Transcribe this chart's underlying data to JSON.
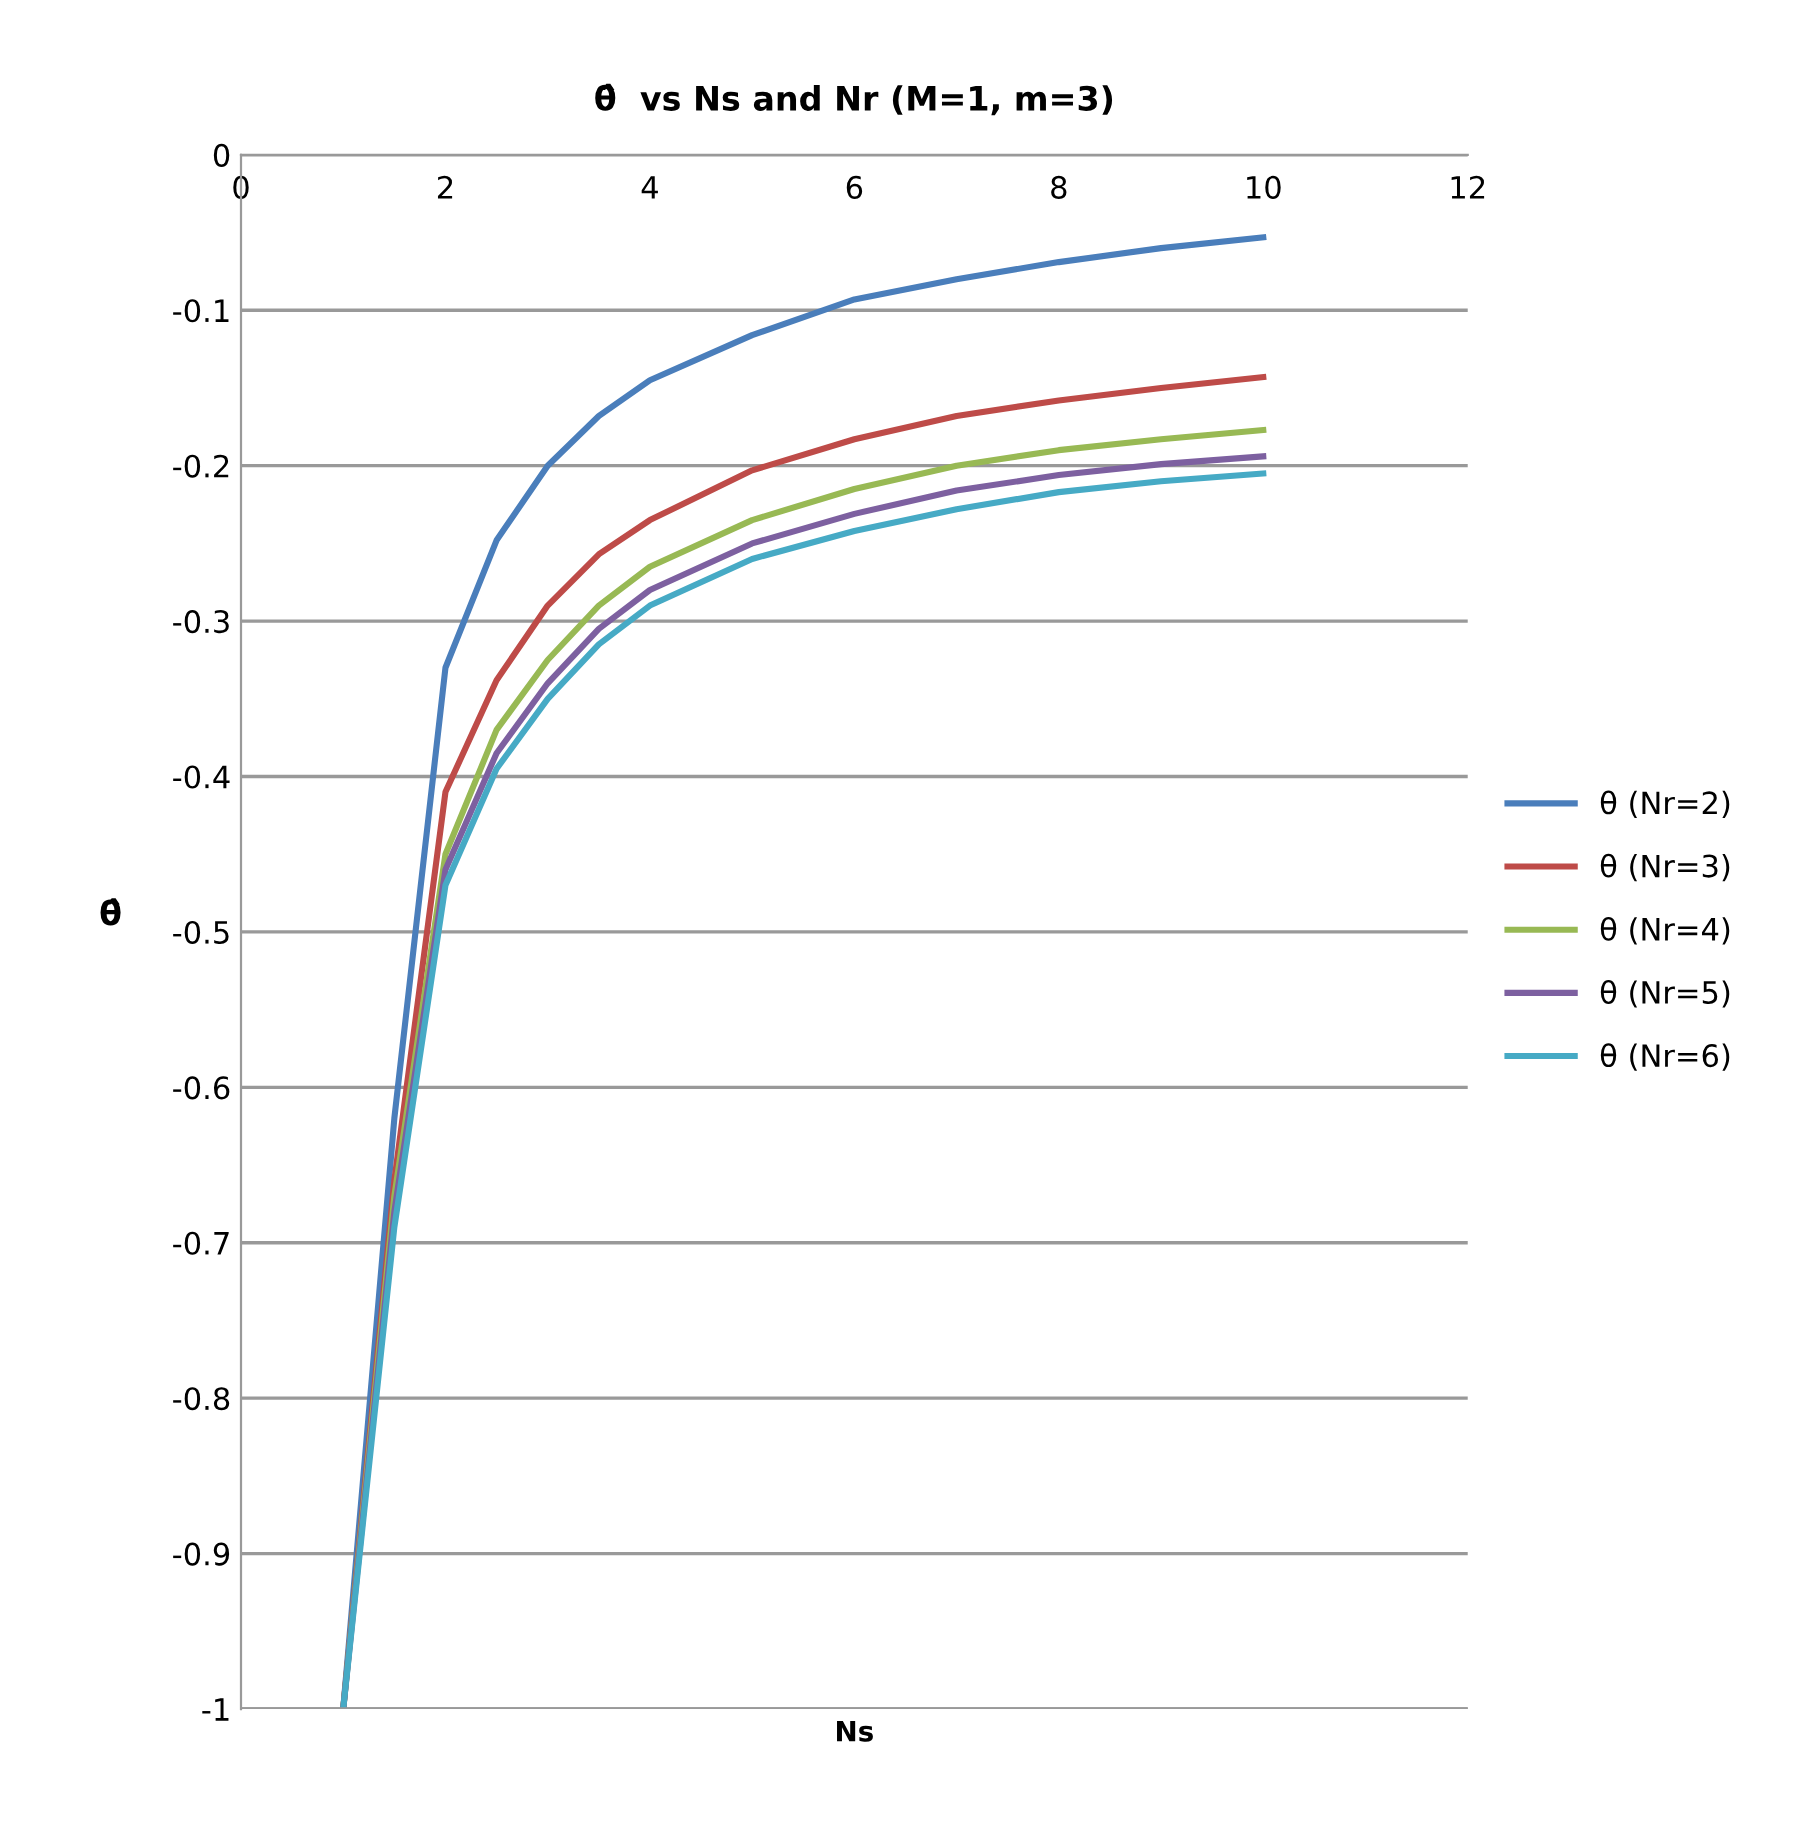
{
  "chart_data": {
    "type": "line",
    "title": "θ̂  vs Ns and Nr (M=1, m=3)",
    "xlabel": "Ns",
    "ylabel": "θ̂",
    "x": [
      1,
      1.5,
      2,
      2.5,
      3,
      3.5,
      4,
      5,
      6,
      7,
      8,
      9,
      10
    ],
    "series": [
      {
        "name": "θ (Nr=2)",
        "color": "#4a7ebb",
        "values": [
          -1,
          -0.62,
          -0.33,
          -0.248,
          -0.2,
          -0.168,
          -0.145,
          -0.116,
          -0.093,
          -0.08,
          -0.069,
          -0.06,
          -0.053
        ]
      },
      {
        "name": "θ (Nr=3)",
        "color": "#be4b48",
        "values": [
          -1,
          -0.66,
          -0.41,
          -0.338,
          -0.29,
          -0.257,
          -0.235,
          -0.203,
          -0.183,
          -0.168,
          -0.158,
          -0.15,
          -0.143
        ]
      },
      {
        "name": "θ (Nr=4)",
        "color": "#98b954",
        "values": [
          -1,
          -0.67,
          -0.45,
          -0.37,
          -0.325,
          -0.29,
          -0.265,
          -0.235,
          -0.215,
          -0.2,
          -0.19,
          -0.183,
          -0.177
        ]
      },
      {
        "name": "θ (Nr=5)",
        "color": "#7d60a0",
        "values": [
          -1,
          -0.68,
          -0.46,
          -0.385,
          -0.34,
          -0.305,
          -0.28,
          -0.25,
          -0.231,
          -0.216,
          -0.206,
          -0.199,
          -0.194
        ]
      },
      {
        "name": "θ (Nr=6)",
        "color": "#46aac5",
        "values": [
          -1,
          -0.69,
          -0.47,
          -0.395,
          -0.35,
          -0.315,
          -0.29,
          -0.26,
          -0.242,
          -0.228,
          -0.217,
          -0.21,
          -0.205
        ]
      }
    ],
    "xlim": [
      0,
      12
    ],
    "xticks": [
      0,
      2,
      4,
      6,
      8,
      10,
      12
    ],
    "ylim": [
      -1,
      0
    ],
    "yticks": [
      -1,
      -0.9,
      -0.8,
      -0.7,
      -0.6,
      -0.5,
      -0.4,
      -0.3,
      -0.2,
      -0.1,
      0
    ],
    "grid": "y",
    "legend": "right",
    "marker": "none",
    "line_style": "solid"
  }
}
